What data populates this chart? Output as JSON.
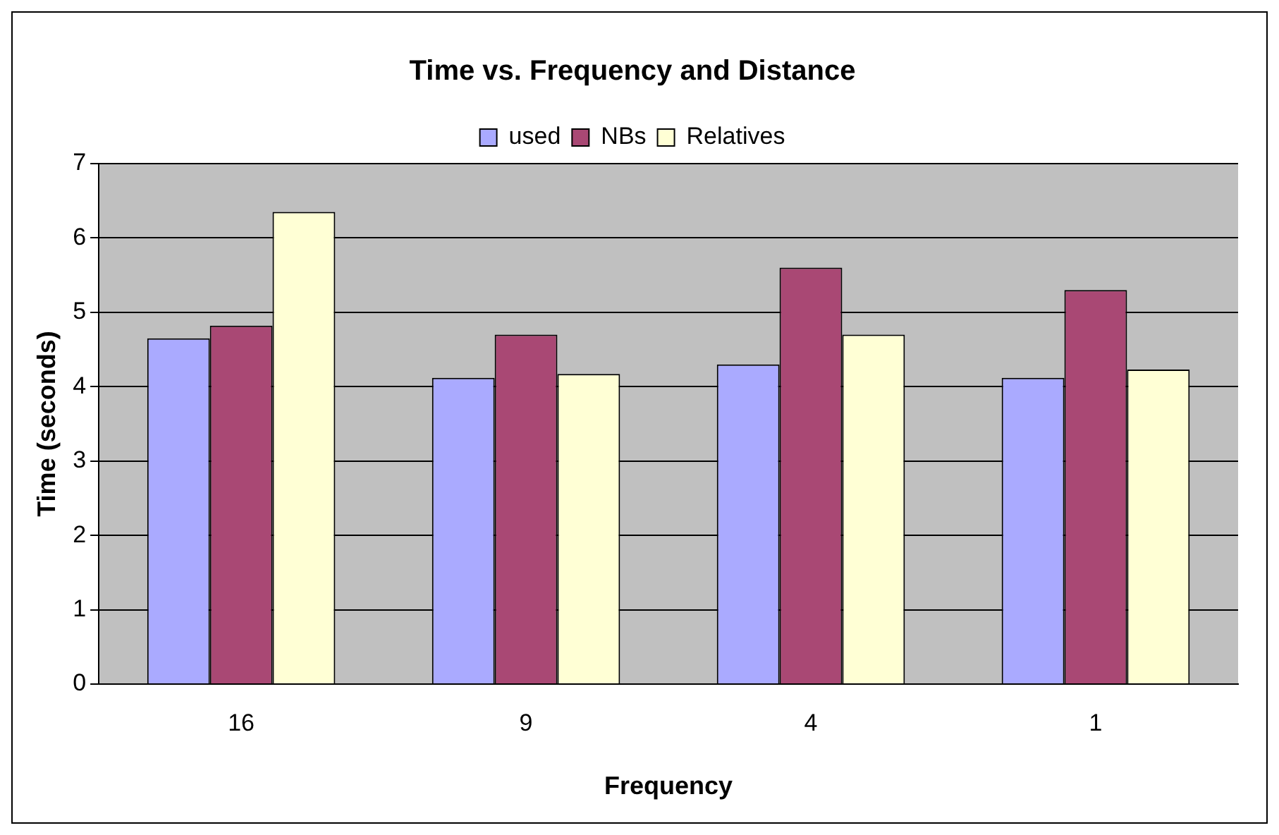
{
  "chart_data": {
    "type": "bar",
    "title": "Time vs. Frequency and Distance",
    "xlabel": "Frequency",
    "ylabel": "Time (seconds)",
    "categories": [
      "16",
      "9",
      "4",
      "1"
    ],
    "series": [
      {
        "name": "used",
        "color": "#aaaaff",
        "values": [
          4.65,
          4.12,
          4.3,
          4.12
        ]
      },
      {
        "name": "NBs",
        "color": "#a94874",
        "values": [
          4.82,
          4.7,
          5.6,
          5.3
        ]
      },
      {
        "name": "Relatives",
        "color": "#ffffd5",
        "values": [
          6.35,
          4.17,
          4.7,
          4.23
        ]
      }
    ],
    "ylim": [
      0,
      7
    ],
    "yticks": [
      0,
      1,
      2,
      3,
      4,
      5,
      6,
      7
    ],
    "grid": "y",
    "legend": "top"
  }
}
